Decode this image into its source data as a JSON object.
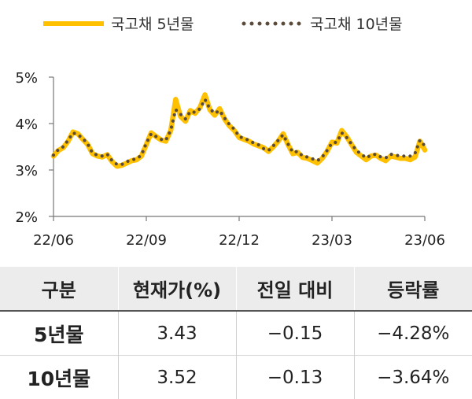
{
  "chart_data": {
    "type": "line",
    "ylim": [
      2,
      5
    ],
    "yticks": [
      "2%",
      "3%",
      "4%",
      "5%"
    ],
    "xticks": [
      "22/06",
      "22/09",
      "22/12",
      "23/03",
      "23/06"
    ],
    "series": [
      {
        "name": "국고채 5년물",
        "color": "#FFC000",
        "style": "solid",
        "values": [
          3.3,
          3.42,
          3.48,
          3.62,
          3.82,
          3.78,
          3.66,
          3.55,
          3.35,
          3.3,
          3.28,
          3.33,
          3.18,
          3.08,
          3.1,
          3.15,
          3.2,
          3.22,
          3.3,
          3.55,
          3.8,
          3.72,
          3.65,
          3.62,
          3.85,
          4.52,
          4.15,
          4.05,
          4.28,
          4.22,
          4.35,
          4.62,
          4.3,
          4.18,
          4.32,
          4.1,
          3.95,
          3.85,
          3.7,
          3.66,
          3.62,
          3.56,
          3.52,
          3.48,
          3.4,
          3.5,
          3.62,
          3.78,
          3.55,
          3.35,
          3.38,
          3.27,
          3.25,
          3.2,
          3.15,
          3.25,
          3.4,
          3.6,
          3.58,
          3.85,
          3.72,
          3.55,
          3.38,
          3.3,
          3.22,
          3.3,
          3.32,
          3.25,
          3.2,
          3.3,
          3.28,
          3.25,
          3.25,
          3.22,
          3.28,
          3.62,
          3.43
        ]
      },
      {
        "name": "국고채 10년물",
        "color": "#5A4A3A",
        "style": "dotted",
        "values": [
          3.32,
          3.44,
          3.5,
          3.64,
          3.8,
          3.76,
          3.68,
          3.56,
          3.36,
          3.32,
          3.3,
          3.34,
          3.2,
          3.12,
          3.12,
          3.18,
          3.22,
          3.24,
          3.32,
          3.58,
          3.78,
          3.72,
          3.66,
          3.64,
          3.86,
          4.3,
          4.2,
          4.1,
          4.26,
          4.24,
          4.32,
          4.52,
          4.32,
          4.22,
          4.28,
          4.12,
          3.98,
          3.88,
          3.72,
          3.68,
          3.64,
          3.58,
          3.54,
          3.46,
          3.42,
          3.52,
          3.64,
          3.76,
          3.56,
          3.38,
          3.4,
          3.3,
          3.28,
          3.24,
          3.2,
          3.28,
          3.42,
          3.58,
          3.6,
          3.8,
          3.7,
          3.56,
          3.42,
          3.34,
          3.26,
          3.32,
          3.34,
          3.28,
          3.26,
          3.34,
          3.32,
          3.3,
          3.3,
          3.3,
          3.36,
          3.64,
          3.52
        ]
      }
    ]
  },
  "table": {
    "headers": [
      "구분",
      "현재가(%)",
      "전일 대비",
      "등락률"
    ],
    "rows": [
      {
        "label": "5년물",
        "price": "3.43",
        "change": "−0.15",
        "rate": "−4.28%"
      },
      {
        "label": "10년물",
        "price": "3.52",
        "change": "−0.13",
        "rate": "−3.64%"
      }
    ]
  }
}
